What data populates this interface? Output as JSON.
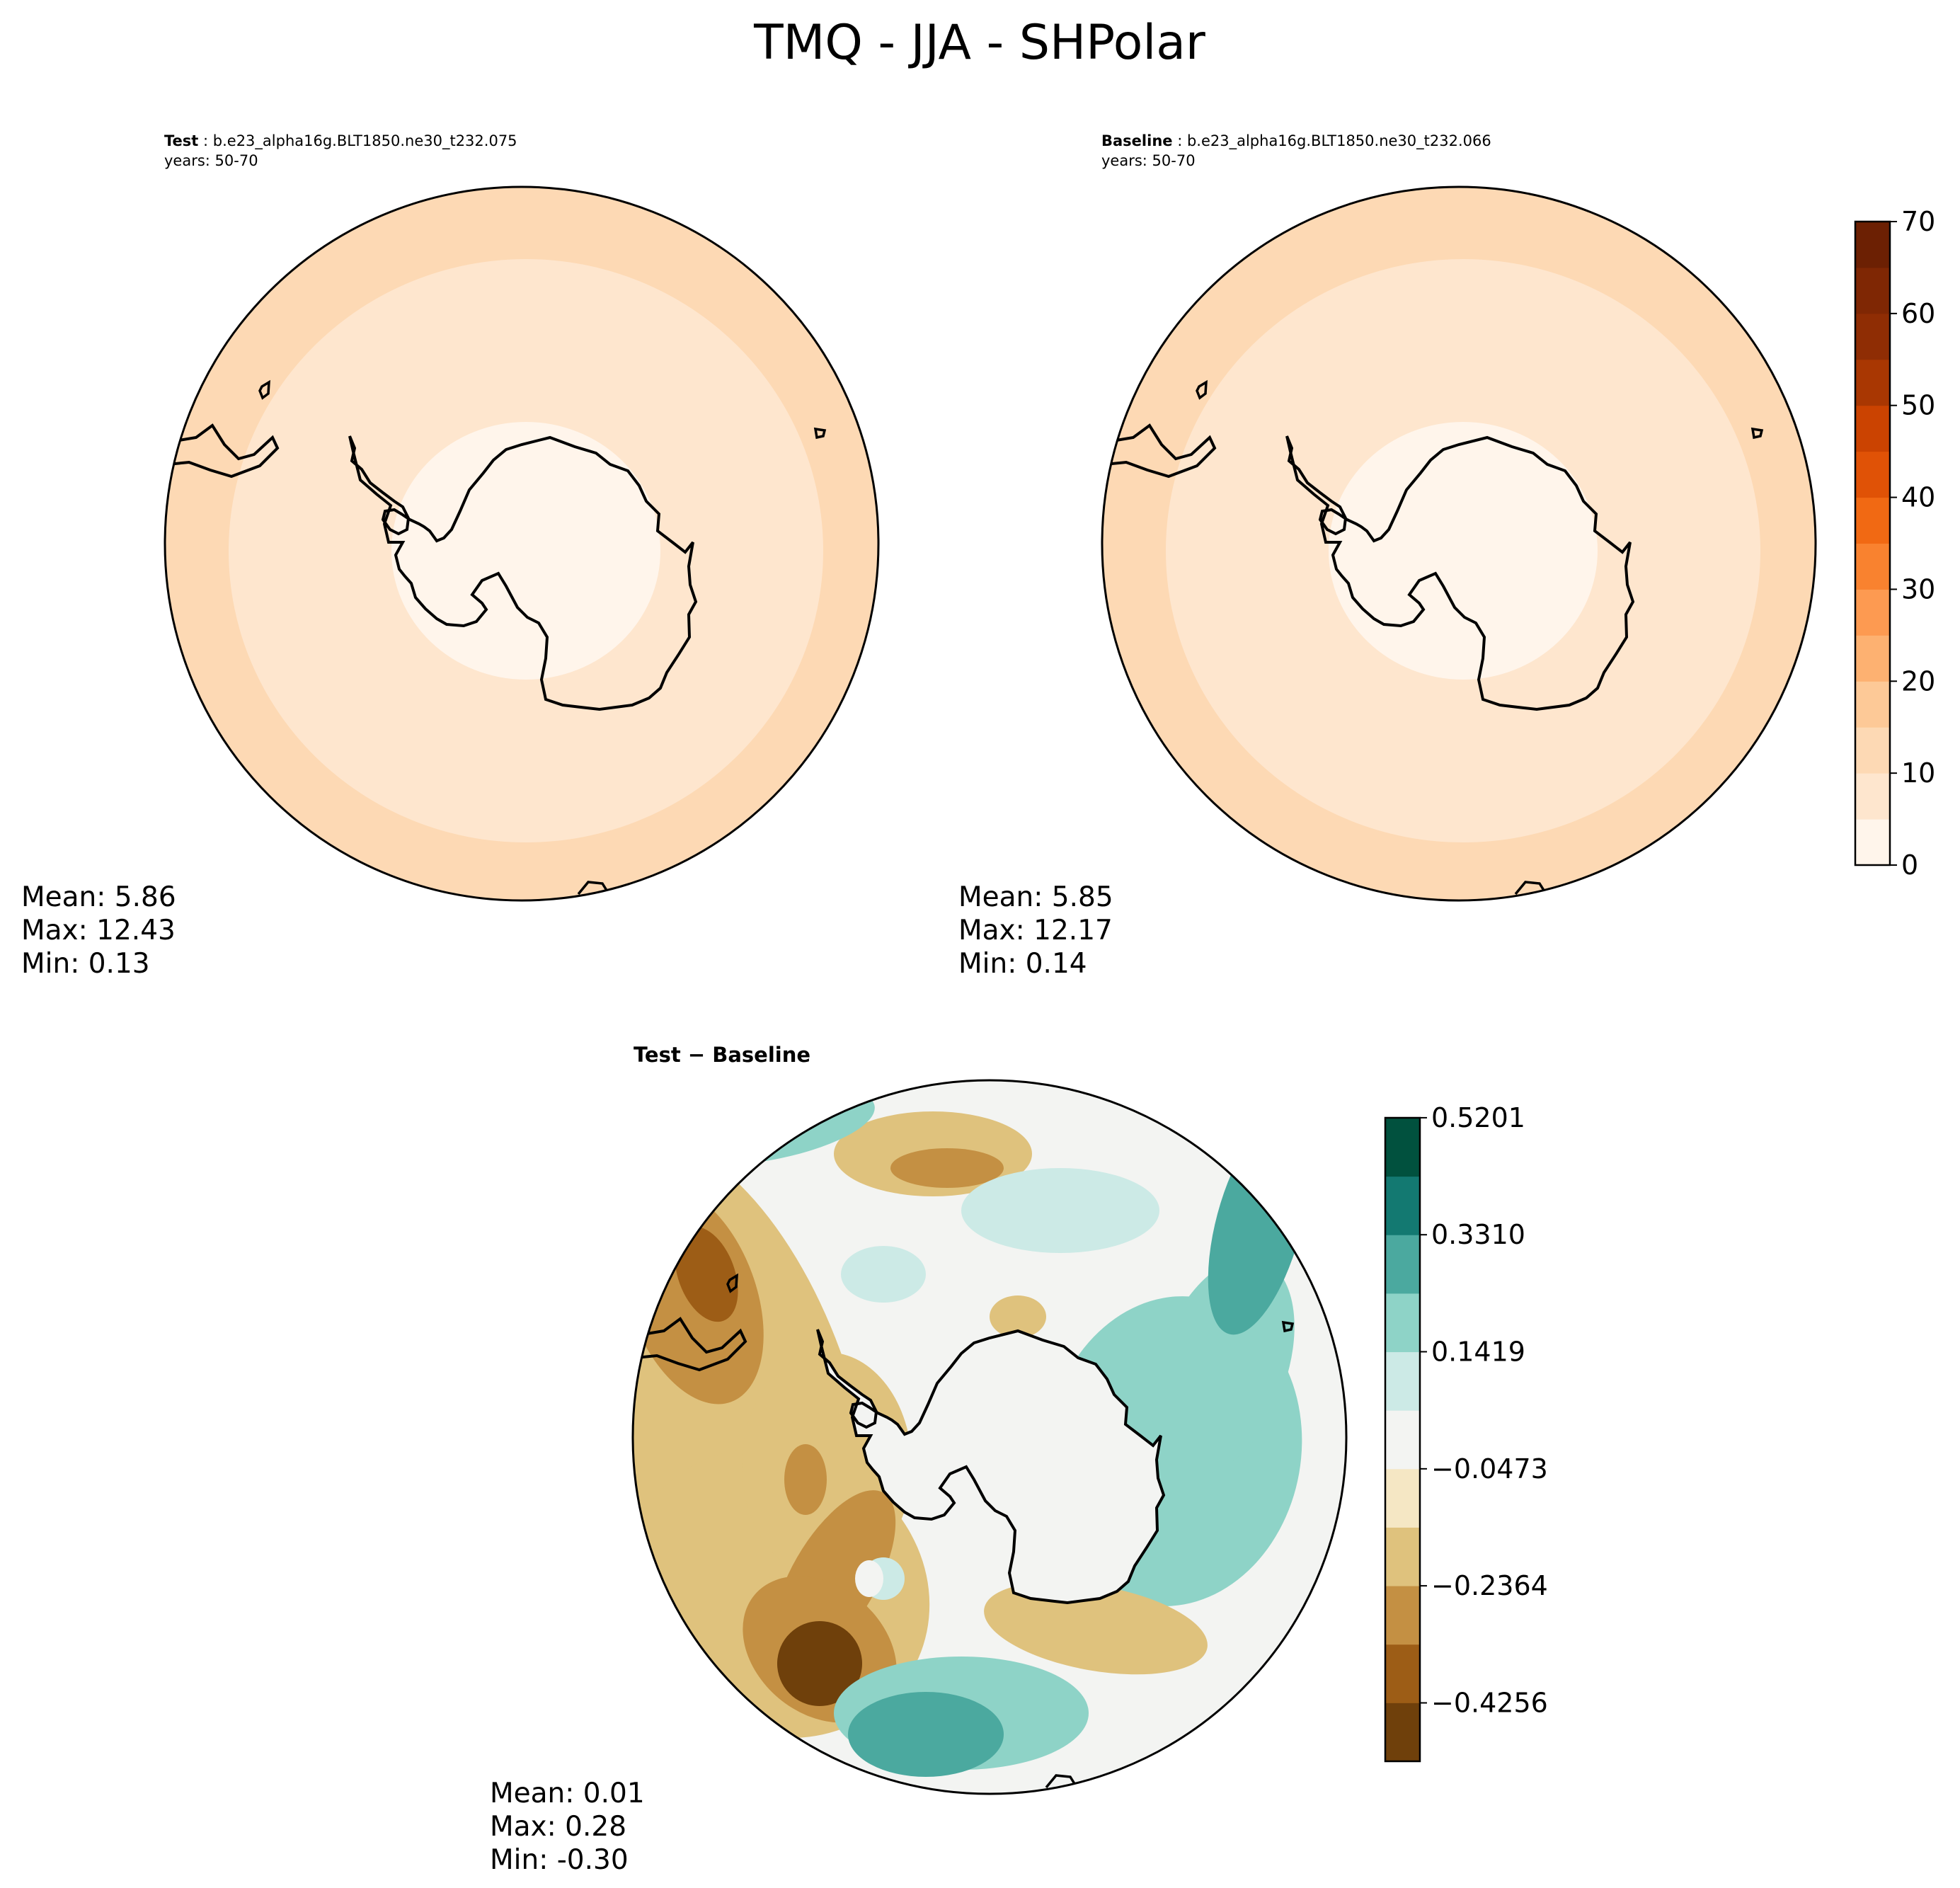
{
  "chart_data": {
    "type": "contour_map",
    "title": "TMQ - JJA - SHPolar",
    "panels": [
      {
        "id": "test",
        "label_bold": "Test",
        "case_name": "b.e23_alpha16g.BLT1850.ne30_t232.075",
        "years": "years: 50-70",
        "stats": {
          "mean": "Mean:  5.86",
          "max": "Max: 12.43",
          "min": "Min:  0.13"
        },
        "field_levels": [
          13,
          9,
          6,
          3
        ],
        "colorbar": "abs"
      },
      {
        "id": "baseline",
        "label_bold": "Baseline",
        "case_name": "b.e23_alpha16g.BLT1850.ne30_t232.066",
        "years": "years: 50-70",
        "stats": {
          "mean": "Mean:  5.85",
          "max": "Max: 12.17",
          "min": "Min:  0.14"
        },
        "field_levels": [
          13,
          9,
          6,
          3
        ],
        "colorbar": "abs"
      },
      {
        "id": "diff",
        "header": "Test − Baseline",
        "stats": {
          "mean": "Mean:  0.01",
          "max": "Max:  0.28",
          "min": "Min: -0.30"
        },
        "colorbar": "diff"
      }
    ],
    "colorbars": {
      "abs": {
        "min": 0,
        "max": 70,
        "ticks": [
          "0",
          "10",
          "20",
          "30",
          "40",
          "50",
          "60",
          "70"
        ],
        "colors": [
          "#fff5eb",
          "#fee6ce",
          "#fdd9b4",
          "#fdc997",
          "#fdb171",
          "#fd9a51",
          "#f9822f",
          "#f16913",
          "#e05206",
          "#cb4301",
          "#a93702",
          "#8f2d04",
          "#7f2704",
          "#6c2003"
        ]
      },
      "diff": {
        "min": -0.52,
        "max": 0.52,
        "ticks": [
          "−0.4256",
          "−0.2364",
          "−0.0473",
          "0.1419",
          "0.3310",
          "0.5201"
        ],
        "tick_values": [
          -0.4256,
          -0.2364,
          -0.0473,
          0.1419,
          0.331,
          0.5201
        ],
        "label_last": "0.5201",
        "colors": [
          "#6f400b",
          "#9d5d16",
          "#c49043",
          "#dfc27d",
          "#f5e7c4",
          "#f3f4f2",
          "#cceae6",
          "#8ed3c7",
          "#4ba99f",
          "#137971",
          "#01513e"
        ]
      }
    }
  }
}
